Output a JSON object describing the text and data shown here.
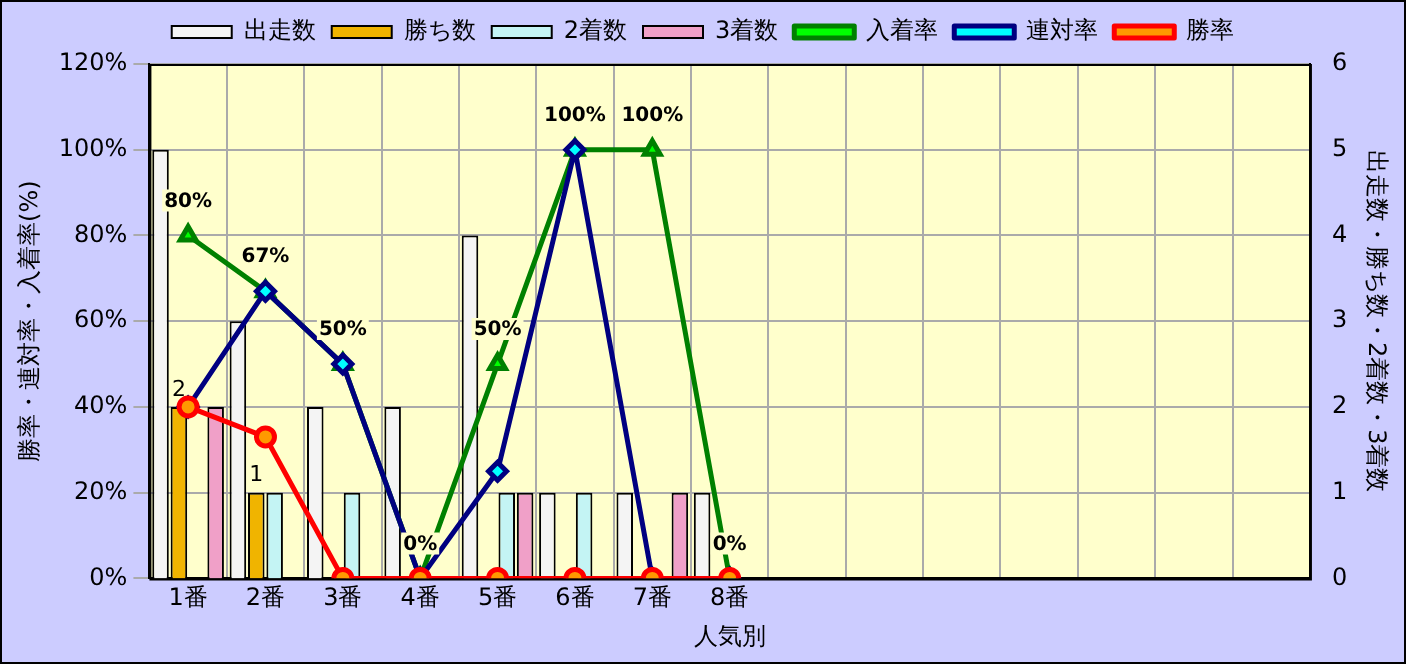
{
  "chart_data": {
    "type": "bar",
    "categories": [
      "1番",
      "2番",
      "3番",
      "4番",
      "5番",
      "6番",
      "7番",
      "8番",
      null,
      null,
      null,
      null,
      null,
      null,
      null
    ],
    "xlabel": "人気別",
    "ylabel": "勝率・連対率・入着率(%)",
    "y2label": "出走数・勝ち数・2着数・3着数",
    "series": [
      {
        "name": "出走数",
        "axis": "y2",
        "color": "#f4f4f4",
        "values": [
          5,
          3,
          2,
          2,
          4,
          1,
          1,
          1,
          null,
          null,
          null,
          null,
          null,
          null,
          null
        ]
      },
      {
        "name": "勝ち数",
        "axis": "y2",
        "color": "#f0b400",
        "values": [
          2,
          1,
          0,
          0,
          0,
          0,
          0,
          0,
          null,
          null,
          null,
          null,
          null,
          null,
          null
        ],
        "value_labels": [
          "2",
          "1",
          null,
          null,
          null,
          null,
          null,
          null,
          null,
          null,
          null,
          null,
          null,
          null,
          null
        ]
      },
      {
        "name": "2着数",
        "axis": "y2",
        "color": "#c4f4f4",
        "values": [
          0,
          1,
          1,
          0,
          1,
          1,
          0,
          0,
          null,
          null,
          null,
          null,
          null,
          null,
          null
        ]
      },
      {
        "name": "3着数",
        "axis": "y2",
        "color": "#f0a0c8",
        "values": [
          2,
          0,
          0,
          0,
          1,
          0,
          1,
          0,
          null,
          null,
          null,
          null,
          null,
          null,
          null
        ]
      },
      {
        "name": "入着率",
        "type": "line",
        "marker": "triangle",
        "color": "#008000",
        "colors": [
          "#00ff00",
          "#00ff00",
          "#00ff00",
          "#00ff00",
          "#00ff00",
          "#00ff00",
          "#00ff00",
          "#00ff00",
          null,
          null,
          null,
          null,
          null,
          null,
          null
        ],
        "values": [
          80,
          67,
          50,
          0,
          50,
          100,
          100,
          0,
          null,
          null,
          null,
          null,
          null,
          null,
          null
        ],
        "value_labels": [
          "80%",
          "67%",
          "50%",
          "0%",
          "50%",
          "100%",
          "100%",
          "0%",
          null,
          null,
          null,
          null,
          null,
          null,
          null
        ]
      },
      {
        "name": "連対率",
        "type": "line",
        "marker": "diamond",
        "color": "#000080",
        "colors": [
          "#00ffff",
          "#00ffff",
          "#00ffff",
          "#00ffff",
          "#00ffff",
          "#00ffff",
          "#00ffff",
          "#00ffff",
          null,
          null,
          null,
          null,
          null,
          null,
          null
        ],
        "values": [
          40,
          67,
          50,
          0,
          25,
          100,
          0,
          0,
          null,
          null,
          null,
          null,
          null,
          null,
          null
        ]
      },
      {
        "name": "勝率",
        "type": "line",
        "marker": "circle",
        "color": "#ff0000",
        "colors": [
          "#ff9900",
          "#ff9900",
          "#ff9900",
          "#ff9900",
          "#ff9900",
          "#ff9900",
          "#ff9900",
          "#ff9900",
          null,
          null,
          null,
          null,
          null,
          null,
          null
        ],
        "values": [
          40,
          33,
          0,
          0,
          0,
          0,
          0,
          0,
          null,
          null,
          null,
          null,
          null,
          null,
          null
        ]
      }
    ],
    "ylim": [
      0,
      120
    ],
    "yticks": [
      {
        "value": 0,
        "label": "0%"
      },
      {
        "value": 20,
        "label": "20%"
      },
      {
        "value": 40,
        "label": "40%"
      },
      {
        "value": 60,
        "label": "60%"
      },
      {
        "value": 80,
        "label": "80%"
      },
      {
        "value": 100,
        "label": "100%"
      },
      {
        "value": 120,
        "label": "120%"
      }
    ],
    "y2lim": [
      0,
      6
    ],
    "y2ticks": [
      0,
      1,
      2,
      3,
      4,
      5,
      6
    ],
    "grid": true,
    "legend": "top"
  }
}
